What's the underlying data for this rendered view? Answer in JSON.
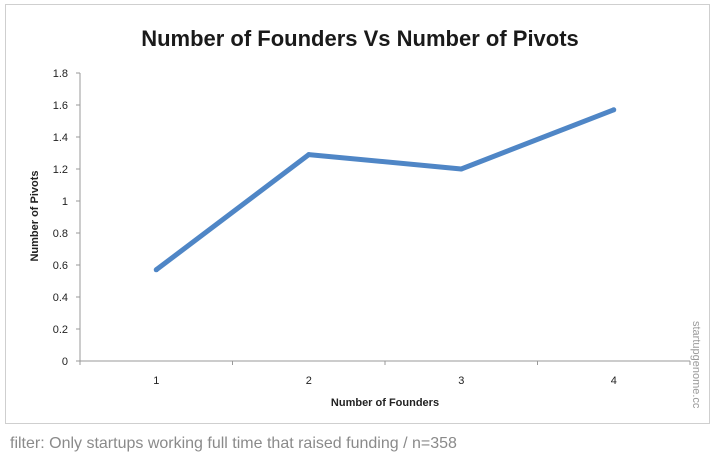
{
  "chart_data": {
    "type": "line",
    "title": "Number of Founders Vs Number of Pivots",
    "xlabel": "Number of Founders",
    "ylabel": "Number of Pivots",
    "categories": [
      "1",
      "2",
      "3",
      "4"
    ],
    "series": [
      {
        "values": [
          0.57,
          1.29,
          1.2,
          1.57
        ]
      }
    ],
    "ylim": [
      0,
      1.8
    ],
    "yticks": [
      "0",
      "0.2",
      "0.4",
      "0.6",
      "0.8",
      "1",
      "1.2",
      "1.4",
      "1.6",
      "1.8"
    ],
    "grid": false,
    "legend": "none",
    "line_color": "#4f86c6"
  },
  "watermark": "startupgenome.cc",
  "caption": "filter: Only startups working full time that raised funding / n=358"
}
